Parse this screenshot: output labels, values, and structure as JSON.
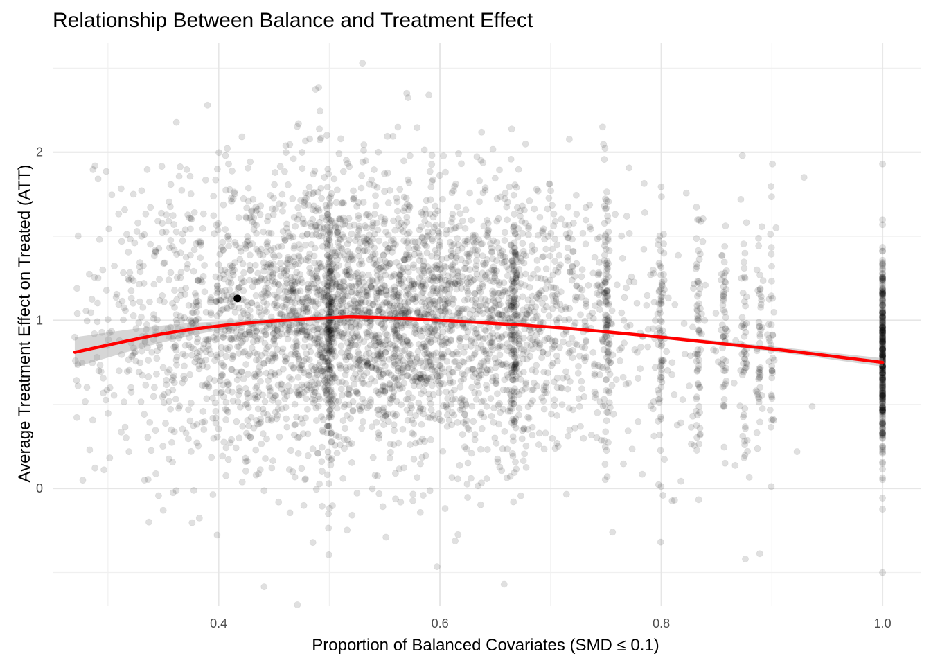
{
  "chart_data": {
    "type": "scatter",
    "title": "Relationship Between Balance and Treatment Effect",
    "xlabel": "Proportion of Balanced Covariates (SMD ≤ 0.1)",
    "ylabel": "Average Treatment Effect on Treated (ATT)",
    "xlim": [
      0.25,
      1.035
    ],
    "ylim": [
      -0.7,
      2.65
    ],
    "x_ticks": [
      0.4,
      0.6,
      0.8,
      1.0
    ],
    "x_tick_labels": [
      "0.4",
      "0.6",
      "0.8",
      "1.0"
    ],
    "y_ticks": [
      0,
      1,
      2
    ],
    "y_tick_labels": [
      "0",
      "1",
      "2"
    ],
    "grid": true,
    "point_color": "#000000",
    "point_opacity": 0.12,
    "highlight_point": {
      "x": 0.417,
      "y": 1.13
    },
    "series": [
      {
        "type": "scatter",
        "description_of_cloud": "approx. 5000 points; x concentrated 0.40-0.70, y mean ~1.0, sd ~0.4; vertical stripes at x = 0.5, 0.667, 0.75, 0.8, 0.833, 0.857, 0.875, 0.889, 1.0",
        "sample_points": [
          {
            "x": 0.27,
            "y": 0.9
          },
          {
            "x": 0.272,
            "y": 1.19
          },
          {
            "x": 0.273,
            "y": 0.61
          },
          {
            "x": 0.29,
            "y": 0.78
          },
          {
            "x": 0.31,
            "y": 0.7
          },
          {
            "x": 0.323,
            "y": 1.75
          },
          {
            "x": 0.327,
            "y": 1.58
          },
          {
            "x": 0.333,
            "y": 0.05
          },
          {
            "x": 0.337,
            "y": -0.2
          },
          {
            "x": 0.35,
            "y": -0.13
          },
          {
            "x": 0.39,
            "y": 2.28
          },
          {
            "x": 0.53,
            "y": 2.53
          },
          {
            "x": 0.57,
            "y": 2.35
          },
          {
            "x": 0.59,
            "y": 2.34
          },
          {
            "x": 0.747,
            "y": 2.15
          },
          {
            "x": 0.876,
            "y": -0.42
          },
          {
            "x": 0.658,
            "y": -0.57
          },
          {
            "x": 0.756,
            "y": -0.26
          },
          {
            "x": 1.0,
            "y": -0.5
          },
          {
            "x": 1.0,
            "y": 1.93
          },
          {
            "x": 0.929,
            "y": 1.85
          }
        ]
      },
      {
        "type": "line",
        "name": "",
        "color": "#ff0000",
        "smooth": "loess",
        "x": [
          0.27,
          0.35,
          0.42,
          0.5,
          0.53,
          0.6,
          0.7,
          0.8,
          0.9,
          1.0
        ],
        "y": [
          0.81,
          0.92,
          0.98,
          1.015,
          1.02,
          1.0,
          0.96,
          0.9,
          0.83,
          0.75
        ],
        "ci_lower": [
          0.72,
          0.87,
          0.96,
          1.0,
          1.01,
          0.99,
          0.95,
          0.89,
          0.815,
          0.725
        ],
        "ci_upper": [
          0.9,
          0.97,
          1.0,
          1.03,
          1.03,
          1.01,
          0.97,
          0.91,
          0.845,
          0.775
        ]
      }
    ]
  }
}
